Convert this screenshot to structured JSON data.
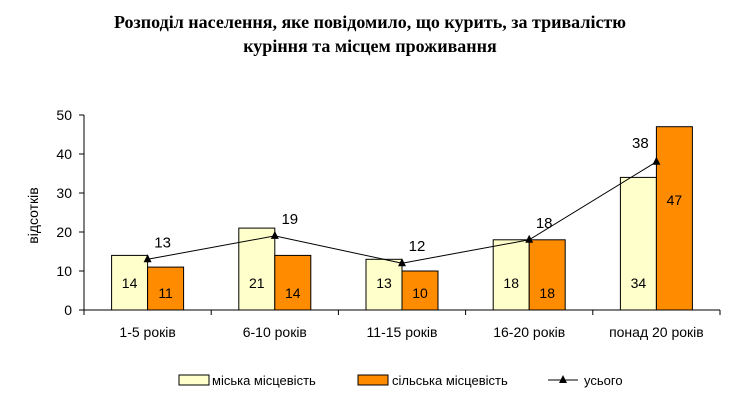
{
  "title_line1": "Розподіл населення, яке повідомило, що курить, за тривалістю",
  "title_line2": "куріння та місцем проживання",
  "chart_data": {
    "type": "bar",
    "categories": [
      "1-5 років",
      "6-10 років",
      "11-15 років",
      "16-20 років",
      "понад 20 років"
    ],
    "series": [
      {
        "name": "міська місцевість",
        "type": "bar",
        "values": [
          14,
          21,
          13,
          18,
          34
        ],
        "color": "#FFFFCC"
      },
      {
        "name": "сільська місцевість",
        "type": "bar",
        "values": [
          11,
          14,
          10,
          18,
          47
        ],
        "color": "#FF8C00"
      },
      {
        "name": "усього",
        "type": "line",
        "values": [
          13,
          19,
          12,
          18,
          38
        ],
        "color": "#000000"
      }
    ],
    "ylabel": "відсотків",
    "ylim": [
      0,
      50
    ],
    "yticks": [
      0,
      10,
      20,
      30,
      40,
      50
    ],
    "grid": false,
    "legend": "bottom"
  }
}
